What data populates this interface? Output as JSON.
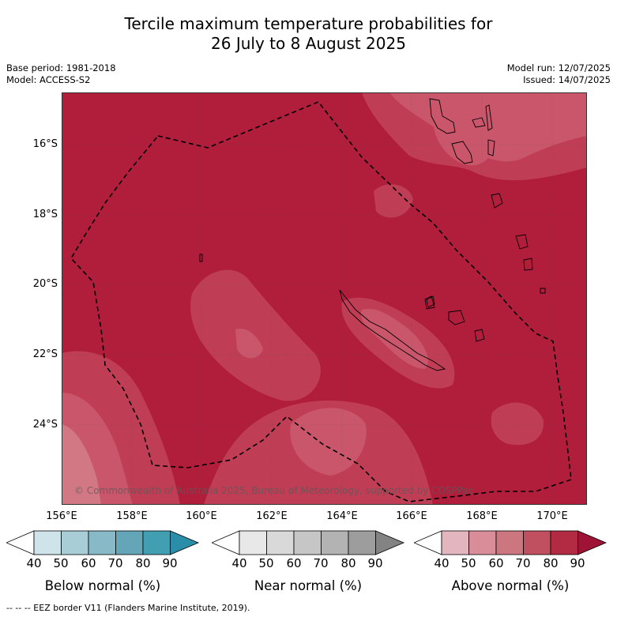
{
  "title_line1": "Tercile maximum temperature probabilities for",
  "title_line2": "26 July to 8 August 2025",
  "base_period": "Base period: 1981-2018",
  "model": "Model: ACCESS-S2",
  "model_run": "Model run: 12/07/2025",
  "issued": "Issued: 14/07/2025",
  "copyright": "© Commonwealth of Australia 2025, Bureau of Meteorology, supported by COSPPac",
  "lat_labels": [
    "16°S",
    "18°S",
    "20°S",
    "22°S",
    "24°S"
  ],
  "lon_labels": [
    "156°E",
    "158°E",
    "160°E",
    "162°E",
    "164°E",
    "166°E",
    "168°E",
    "170°E"
  ],
  "colorbars": [
    {
      "title": "Below normal (%)",
      "ticks": [
        "40",
        "50",
        "60",
        "70",
        "80",
        "90"
      ],
      "colors": [
        "#ffffff",
        "#cfe4ea",
        "#a9cdd6",
        "#87b9c6",
        "#64a5b7",
        "#429fb2",
        "#2a8ea8"
      ]
    },
    {
      "title": "Near normal (%)",
      "ticks": [
        "40",
        "50",
        "60",
        "70",
        "80",
        "90"
      ],
      "colors": [
        "#ffffff",
        "#e8e8e8",
        "#d9d9d9",
        "#c6c6c6",
        "#b3b3b3",
        "#9d9d9d",
        "#838383"
      ]
    },
    {
      "title": "Above normal (%)",
      "ticks": [
        "40",
        "50",
        "60",
        "70",
        "80",
        "90"
      ],
      "colors": [
        "#ffffff",
        "#e3b6bf",
        "#d98d98",
        "#cc7680",
        "#c0505f",
        "#b22b42",
        "#9e1336"
      ]
    }
  ],
  "footnote": "--  --  -- EEZ border V11 (Flanders Marine Institute, 2019).",
  "map_colors": {
    "base": "#b01e3c",
    "lighter": "#bf3e55",
    "lightest": "#c9566a",
    "pale": "#d27884"
  }
}
